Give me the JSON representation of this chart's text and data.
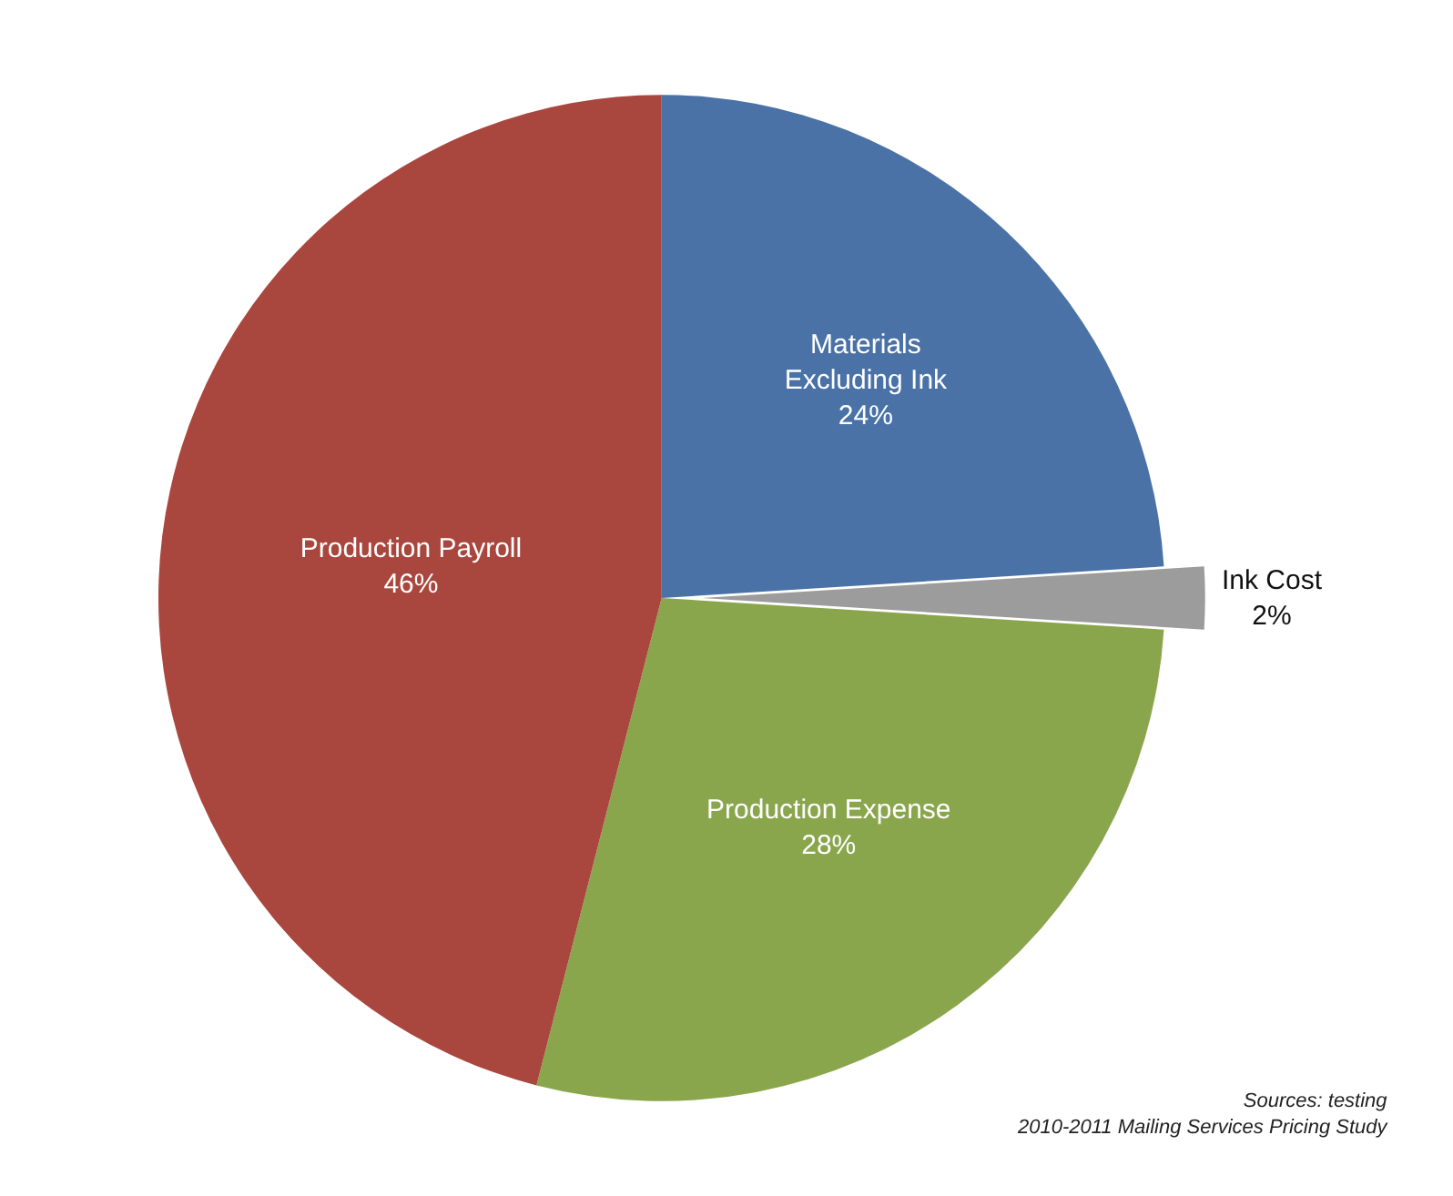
{
  "chart_data": {
    "type": "pie",
    "categories": [
      "Materials\nExcluding Ink",
      "Ink Cost",
      "Production Expense",
      "Production Payroll"
    ],
    "values": [
      24,
      2,
      28,
      46
    ],
    "colors": [
      "#4a72a6",
      "#9c9c9c",
      "#8aa64c",
      "#a9473f"
    ],
    "value_labels": [
      "24%",
      "2%",
      "28%",
      "46%"
    ],
    "legend": false,
    "annotations": [
      "Sources: testing\n2010-2011 Mailing Services Pricing Study"
    ]
  }
}
